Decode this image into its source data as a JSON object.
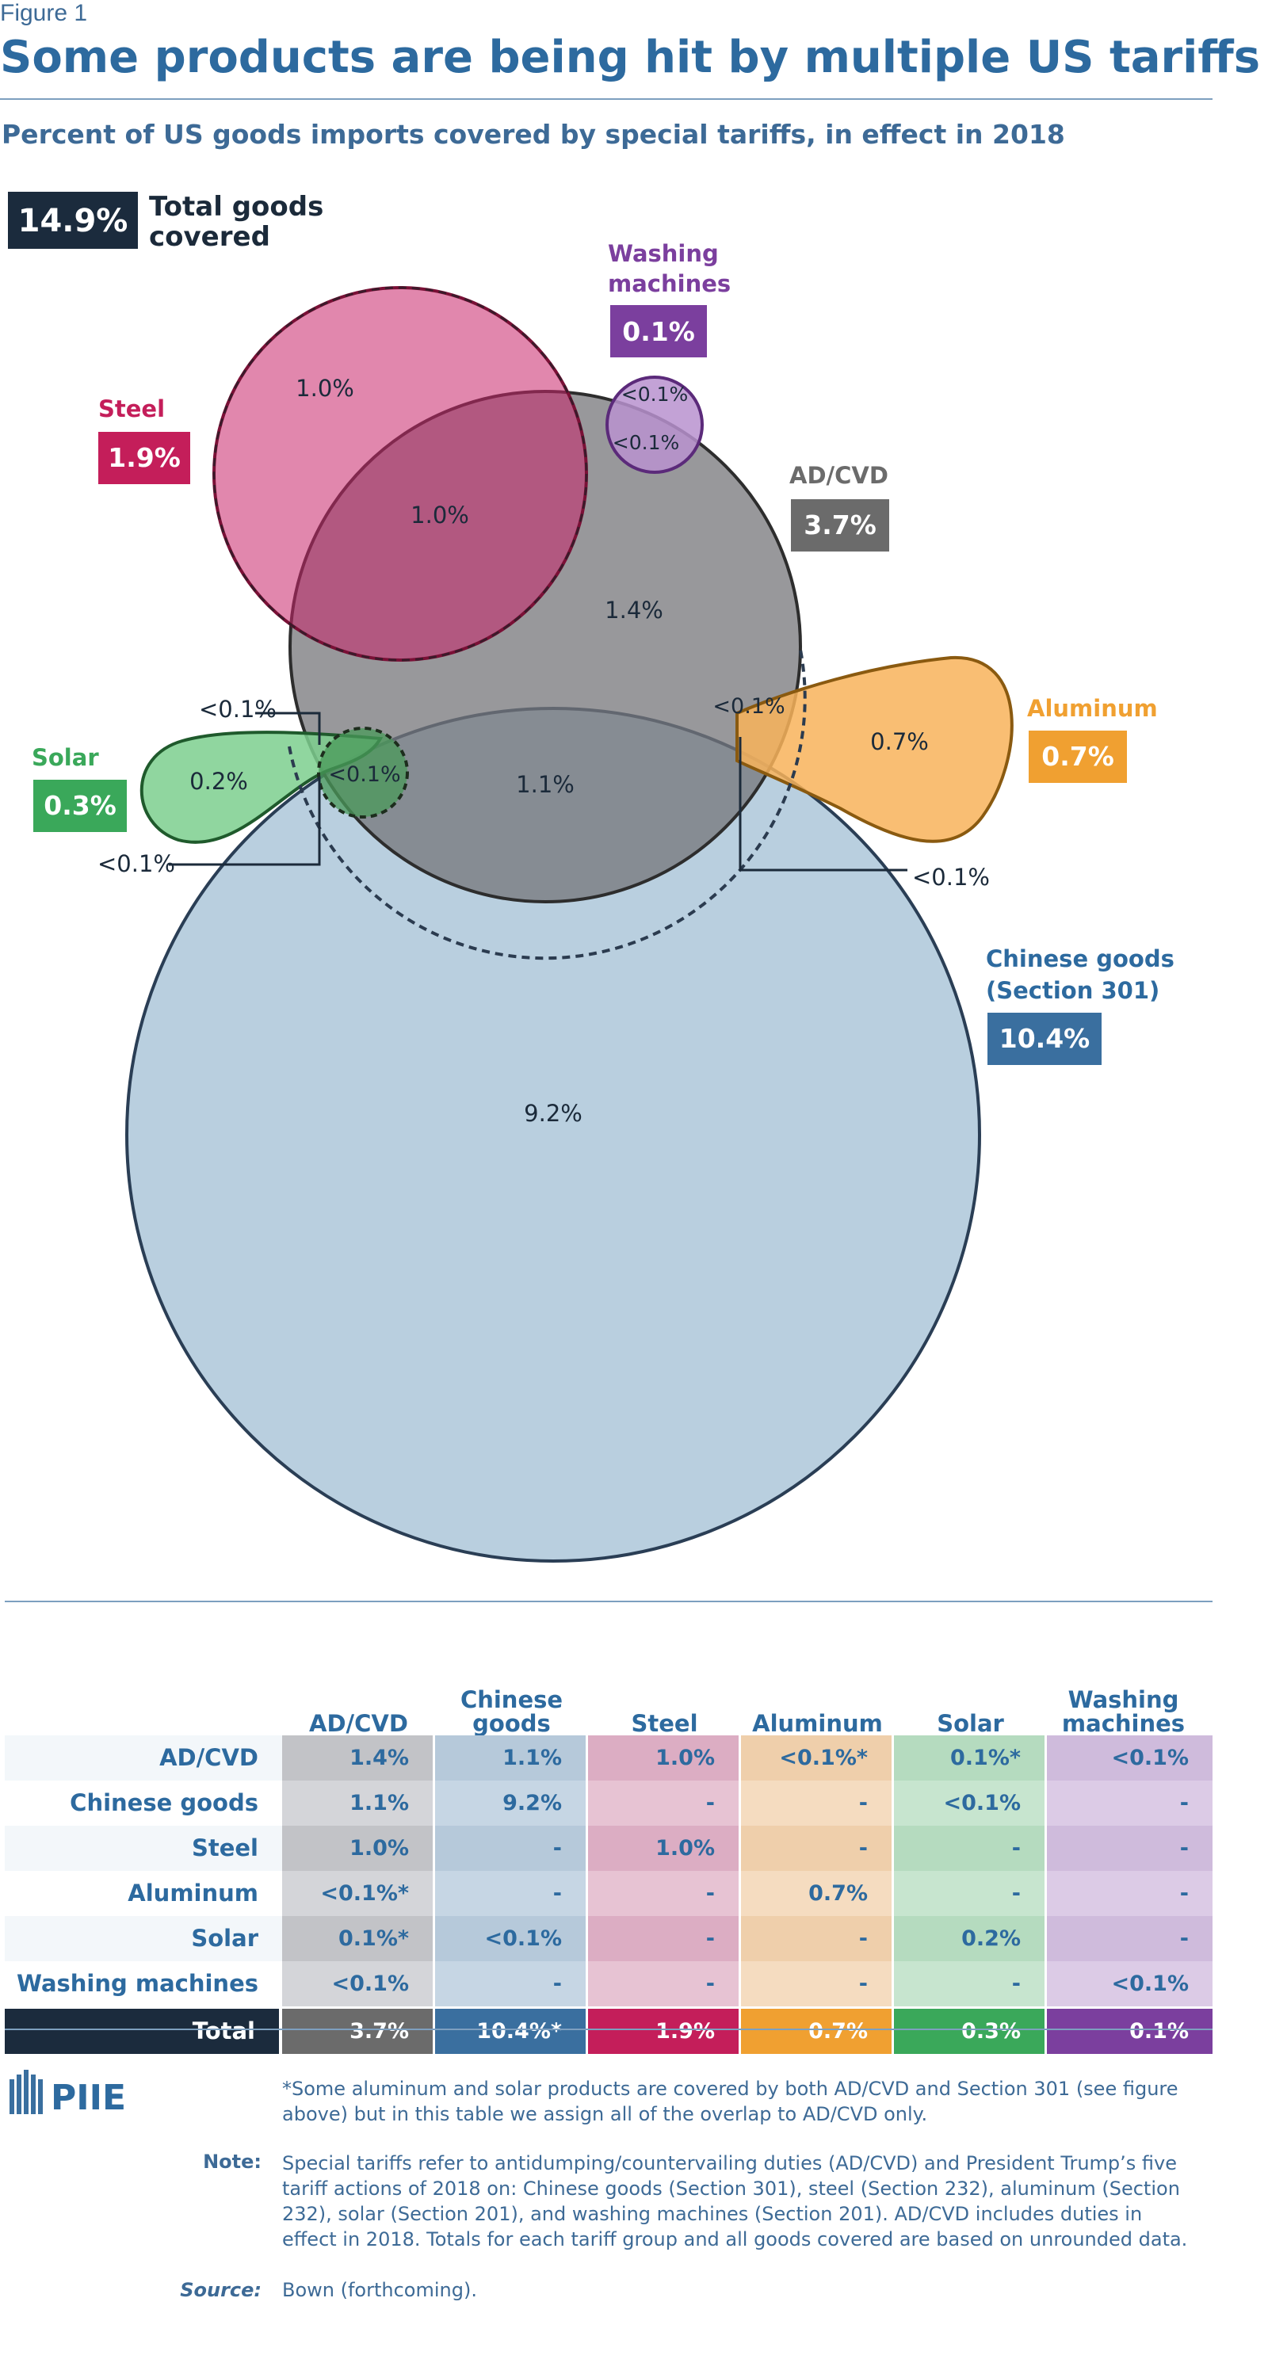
{
  "figure_label": "Figure 1",
  "title": "Some products are being hit by multiple US tariffs",
  "subtitle": "Percent of US goods imports covered by special tariffs, in effect in 2018",
  "total_badge": {
    "value": "14.9%",
    "label_line1": "Total goods",
    "label_line2": "covered"
  },
  "chart_data": [
    {
      "type": "venn",
      "sets": [
        {
          "name": "Steel",
          "value": "1.9%",
          "color": "#c41e5a"
        },
        {
          "name_line1": "Washing",
          "name_line2": "machines",
          "value": "0.1%",
          "color": "#7b3f9e"
        },
        {
          "name": "AD/CVD",
          "value": "3.7%",
          "color": "#6b6b6b"
        },
        {
          "name": "Aluminum",
          "value": "0.7%",
          "color": "#f0a031"
        },
        {
          "name": "Solar",
          "value": "0.3%",
          "color": "#3aa85a"
        },
        {
          "name_line1": "Chinese goods",
          "name_line2": "(Section 301)",
          "value": "10.4%",
          "color": "#3a6f9f"
        }
      ],
      "regions": [
        {
          "sets": [
            "Steel"
          ],
          "value": "1.0%"
        },
        {
          "sets": [
            "Steel",
            "AD/CVD"
          ],
          "value": "1.0%"
        },
        {
          "sets": [
            "Washing machines"
          ],
          "value": "<0.1%"
        },
        {
          "sets": [
            "Washing machines",
            "AD/CVD"
          ],
          "value": "<0.1%"
        },
        {
          "sets": [
            "AD/CVD"
          ],
          "value": "1.4%"
        },
        {
          "sets": [
            "AD/CVD",
            "Chinese goods",
            "Aluminum"
          ],
          "value": "<0.1%"
        },
        {
          "sets": [
            "Aluminum"
          ],
          "value": "0.7%"
        },
        {
          "sets": [
            "Aluminum",
            "Chinese goods"
          ],
          "value": "<0.1%"
        },
        {
          "sets": [
            "Solar",
            "AD/CVD"
          ],
          "value": "<0.1%"
        },
        {
          "sets": [
            "Solar"
          ],
          "value": "0.2%"
        },
        {
          "sets": [
            "Solar",
            "AD/CVD",
            "Chinese goods"
          ],
          "value": "<0.1%"
        },
        {
          "sets": [
            "Solar",
            "Chinese goods"
          ],
          "value": "<0.1%"
        },
        {
          "sets": [
            "AD/CVD",
            "Chinese goods"
          ],
          "value": "1.1%"
        },
        {
          "sets": [
            "Chinese goods"
          ],
          "value": "9.2%"
        }
      ]
    },
    {
      "type": "table",
      "columns": [
        {
          "line1": "AD/CVD",
          "line2": ""
        },
        {
          "line1": "Chinese",
          "line2": "goods"
        },
        {
          "line1": "Steel",
          "line2": ""
        },
        {
          "line1": "Aluminum",
          "line2": ""
        },
        {
          "line1": "Solar",
          "line2": ""
        },
        {
          "line1": "Washing",
          "line2": "machines"
        }
      ],
      "rows": [
        {
          "label": "AD/CVD",
          "values": [
            "1.4%",
            "1.1%",
            "1.0%",
            "<0.1%*",
            "0.1%*",
            "<0.1%"
          ]
        },
        {
          "label": "Chinese goods",
          "values": [
            "1.1%",
            "9.2%",
            "-",
            "-",
            "<0.1%",
            "-"
          ]
        },
        {
          "label": "Steel",
          "values": [
            "1.0%",
            "-",
            "1.0%",
            "-",
            "-",
            "-"
          ]
        },
        {
          "label": "Aluminum",
          "values": [
            "<0.1%*",
            "-",
            "-",
            "0.7%",
            "-",
            "-"
          ]
        },
        {
          "label": "Solar",
          "values": [
            "0.1%*",
            "<0.1%",
            "-",
            "-",
            "0.2%",
            "-"
          ]
        },
        {
          "label": "Washing machines",
          "values": [
            "<0.1%",
            "-",
            "-",
            "-",
            "-",
            "<0.1%"
          ]
        }
      ],
      "total": {
        "label": "Total",
        "values": [
          "3.7%",
          "10.4%*",
          "1.9%",
          "0.7%",
          "0.3%",
          "0.1%"
        ]
      },
      "column_colors": [
        "#6b6b6b",
        "#3a6f9f",
        "#c41e5a",
        "#f0a031",
        "#3aa85a",
        "#7b3f9e"
      ]
    }
  ],
  "footnote": "*Some aluminum and solar products are covered by both AD/CVD and Section 301 (see figure above) but in this table we assign all of the overlap to AD/CVD only.",
  "note_label": "Note:",
  "note": "Special tariffs refer to antidumping/countervailing duties (AD/CVD) and President Trump’s five tariff actions of 2018 on: Chinese goods (Section 301), steel (Section 232), aluminum (Section 232), solar (Section 201), and washing machines (Section 201). AD/CVD includes duties in effect in 2018. Totals for each tariff group and all goods covered are based on unrounded data.",
  "source_label": "Source:",
  "source": "Bown (forthcoming).",
  "logo_text": "PIIE"
}
